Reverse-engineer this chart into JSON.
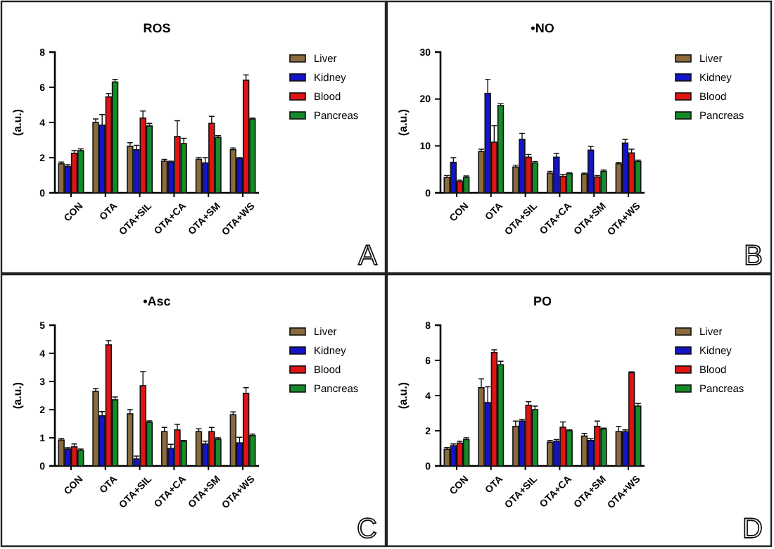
{
  "chart_data": [
    {
      "type": "bar",
      "title": "ROS",
      "ylabel": "(a.u.)",
      "categories": [
        "CON",
        "OTA",
        "OTA+SIL",
        "OTA+CA",
        "OTA+SM",
        "OTA+WS"
      ],
      "ylim": [
        0,
        8
      ],
      "yticks": [
        0,
        2,
        4,
        6,
        8
      ],
      "legend": "top right",
      "annotations": [
        "A"
      ],
      "series": [
        {
          "name": "Liver",
          "color": "#8b6a3e",
          "values": [
            1.65,
            4.0,
            2.65,
            1.8,
            1.9,
            2.45
          ],
          "errors": [
            0.1,
            0.2,
            0.2,
            0.1,
            0.1,
            0.1
          ]
        },
        {
          "name": "Kidney",
          "color": "#1414c8",
          "values": [
            1.5,
            3.85,
            2.45,
            1.75,
            1.7,
            1.95
          ],
          "errors": [
            0.1,
            0.6,
            0.25,
            0.05,
            0.3,
            0.05
          ]
        },
        {
          "name": "Blood",
          "color": "#e01414",
          "values": [
            2.25,
            5.45,
            4.25,
            3.2,
            3.95,
            6.4
          ],
          "errors": [
            0.15,
            0.2,
            0.4,
            0.9,
            0.4,
            0.3
          ]
        },
        {
          "name": "Pancreas",
          "color": "#148c28",
          "values": [
            2.4,
            6.3,
            3.8,
            2.8,
            3.15,
            4.2
          ],
          "errors": [
            0.1,
            0.15,
            0.15,
            0.3,
            0.1,
            0.05
          ]
        }
      ]
    },
    {
      "type": "bar",
      "title": "•NO",
      "ylabel": "(a.u.)",
      "categories": [
        "CON",
        "OTA",
        "OTA+SIL",
        "OTA+CA",
        "OTA+SM",
        "OTA+WS"
      ],
      "ylim": [
        0,
        30
      ],
      "yticks": [
        0,
        10,
        20,
        30
      ],
      "legend": "top right",
      "annotations": [
        "B"
      ],
      "series": [
        {
          "name": "Liver",
          "color": "#8b6a3e",
          "values": [
            3.3,
            8.8,
            5.5,
            4.2,
            4.0,
            6.2
          ],
          "errors": [
            0.4,
            0.5,
            0.4,
            0.4,
            0.2,
            0.3
          ]
        },
        {
          "name": "Kidney",
          "color": "#1414c8",
          "values": [
            6.5,
            21.2,
            11.4,
            7.6,
            9.1,
            10.6
          ],
          "errors": [
            1.0,
            3.0,
            1.3,
            0.8,
            0.8,
            0.8
          ]
        },
        {
          "name": "Blood",
          "color": "#e01414",
          "values": [
            2.4,
            10.8,
            7.6,
            3.5,
            3.4,
            8.5
          ],
          "errors": [
            0.3,
            3.5,
            0.6,
            0.4,
            0.3,
            0.8
          ]
        },
        {
          "name": "Pancreas",
          "color": "#148c28",
          "values": [
            3.3,
            18.6,
            6.4,
            4.1,
            4.6,
            6.7
          ],
          "errors": [
            0.3,
            0.4,
            0.3,
            0.2,
            0.3,
            0.3
          ]
        }
      ]
    },
    {
      "type": "bar",
      "title": "•Asc",
      "ylabel": "(a.u.)",
      "categories": [
        "CON",
        "OTA",
        "OTA+SIL",
        "OTA+CA",
        "OTA+SM",
        "OTA+WS"
      ],
      "ylim": [
        0,
        5
      ],
      "yticks": [
        0,
        1,
        2,
        3,
        4,
        5
      ],
      "legend": "top right",
      "annotations": [
        "C"
      ],
      "series": [
        {
          "name": "Liver",
          "color": "#8b6a3e",
          "values": [
            0.92,
            2.65,
            1.85,
            1.22,
            1.22,
            1.82
          ],
          "errors": [
            0.05,
            0.1,
            0.15,
            0.15,
            0.1,
            0.1
          ]
        },
        {
          "name": "Kidney",
          "color": "#1414c8",
          "values": [
            0.6,
            1.78,
            0.25,
            0.62,
            0.78,
            0.82
          ],
          "errors": [
            0.05,
            0.15,
            0.1,
            0.15,
            0.1,
            0.2
          ]
        },
        {
          "name": "Blood",
          "color": "#e01414",
          "values": [
            0.68,
            4.3,
            2.85,
            1.28,
            1.22,
            2.58
          ],
          "errors": [
            0.1,
            0.15,
            0.5,
            0.2,
            0.15,
            0.2
          ]
        },
        {
          "name": "Pancreas",
          "color": "#148c28",
          "values": [
            0.55,
            2.35,
            1.55,
            0.88,
            0.95,
            1.08
          ],
          "errors": [
            0.05,
            0.1,
            0.05,
            0.03,
            0.05,
            0.05
          ]
        }
      ]
    },
    {
      "type": "bar",
      "title": "PO",
      "ylabel": "(a.u.)",
      "categories": [
        "CON",
        "OTA",
        "OTA+SIL",
        "OTA+CA",
        "OTA+SM",
        "OTA+WS"
      ],
      "ylim": [
        0,
        8
      ],
      "yticks": [
        0,
        2,
        4,
        6,
        8
      ],
      "legend": "top right",
      "annotations": [
        "D"
      ],
      "series": [
        {
          "name": "Liver",
          "color": "#8b6a3e",
          "values": [
            0.95,
            4.45,
            2.25,
            1.35,
            1.7,
            1.95
          ],
          "errors": [
            0.1,
            0.5,
            0.3,
            0.1,
            0.15,
            0.3
          ]
        },
        {
          "name": "Kidney",
          "color": "#1414c8",
          "values": [
            1.15,
            3.6,
            2.55,
            1.4,
            1.45,
            1.95
          ],
          "errors": [
            0.1,
            0.9,
            0.1,
            0.1,
            0.1,
            0.1
          ]
        },
        {
          "name": "Blood",
          "color": "#e01414",
          "values": [
            1.3,
            6.45,
            3.45,
            2.2,
            2.25,
            5.3
          ],
          "errors": [
            0.1,
            0.15,
            0.2,
            0.3,
            0.3,
            0.05
          ]
        },
        {
          "name": "Pancreas",
          "color": "#148c28",
          "values": [
            1.5,
            5.75,
            3.2,
            2.0,
            2.1,
            3.4
          ],
          "errors": [
            0.1,
            0.2,
            0.2,
            0.05,
            0.05,
            0.15
          ]
        }
      ]
    }
  ]
}
